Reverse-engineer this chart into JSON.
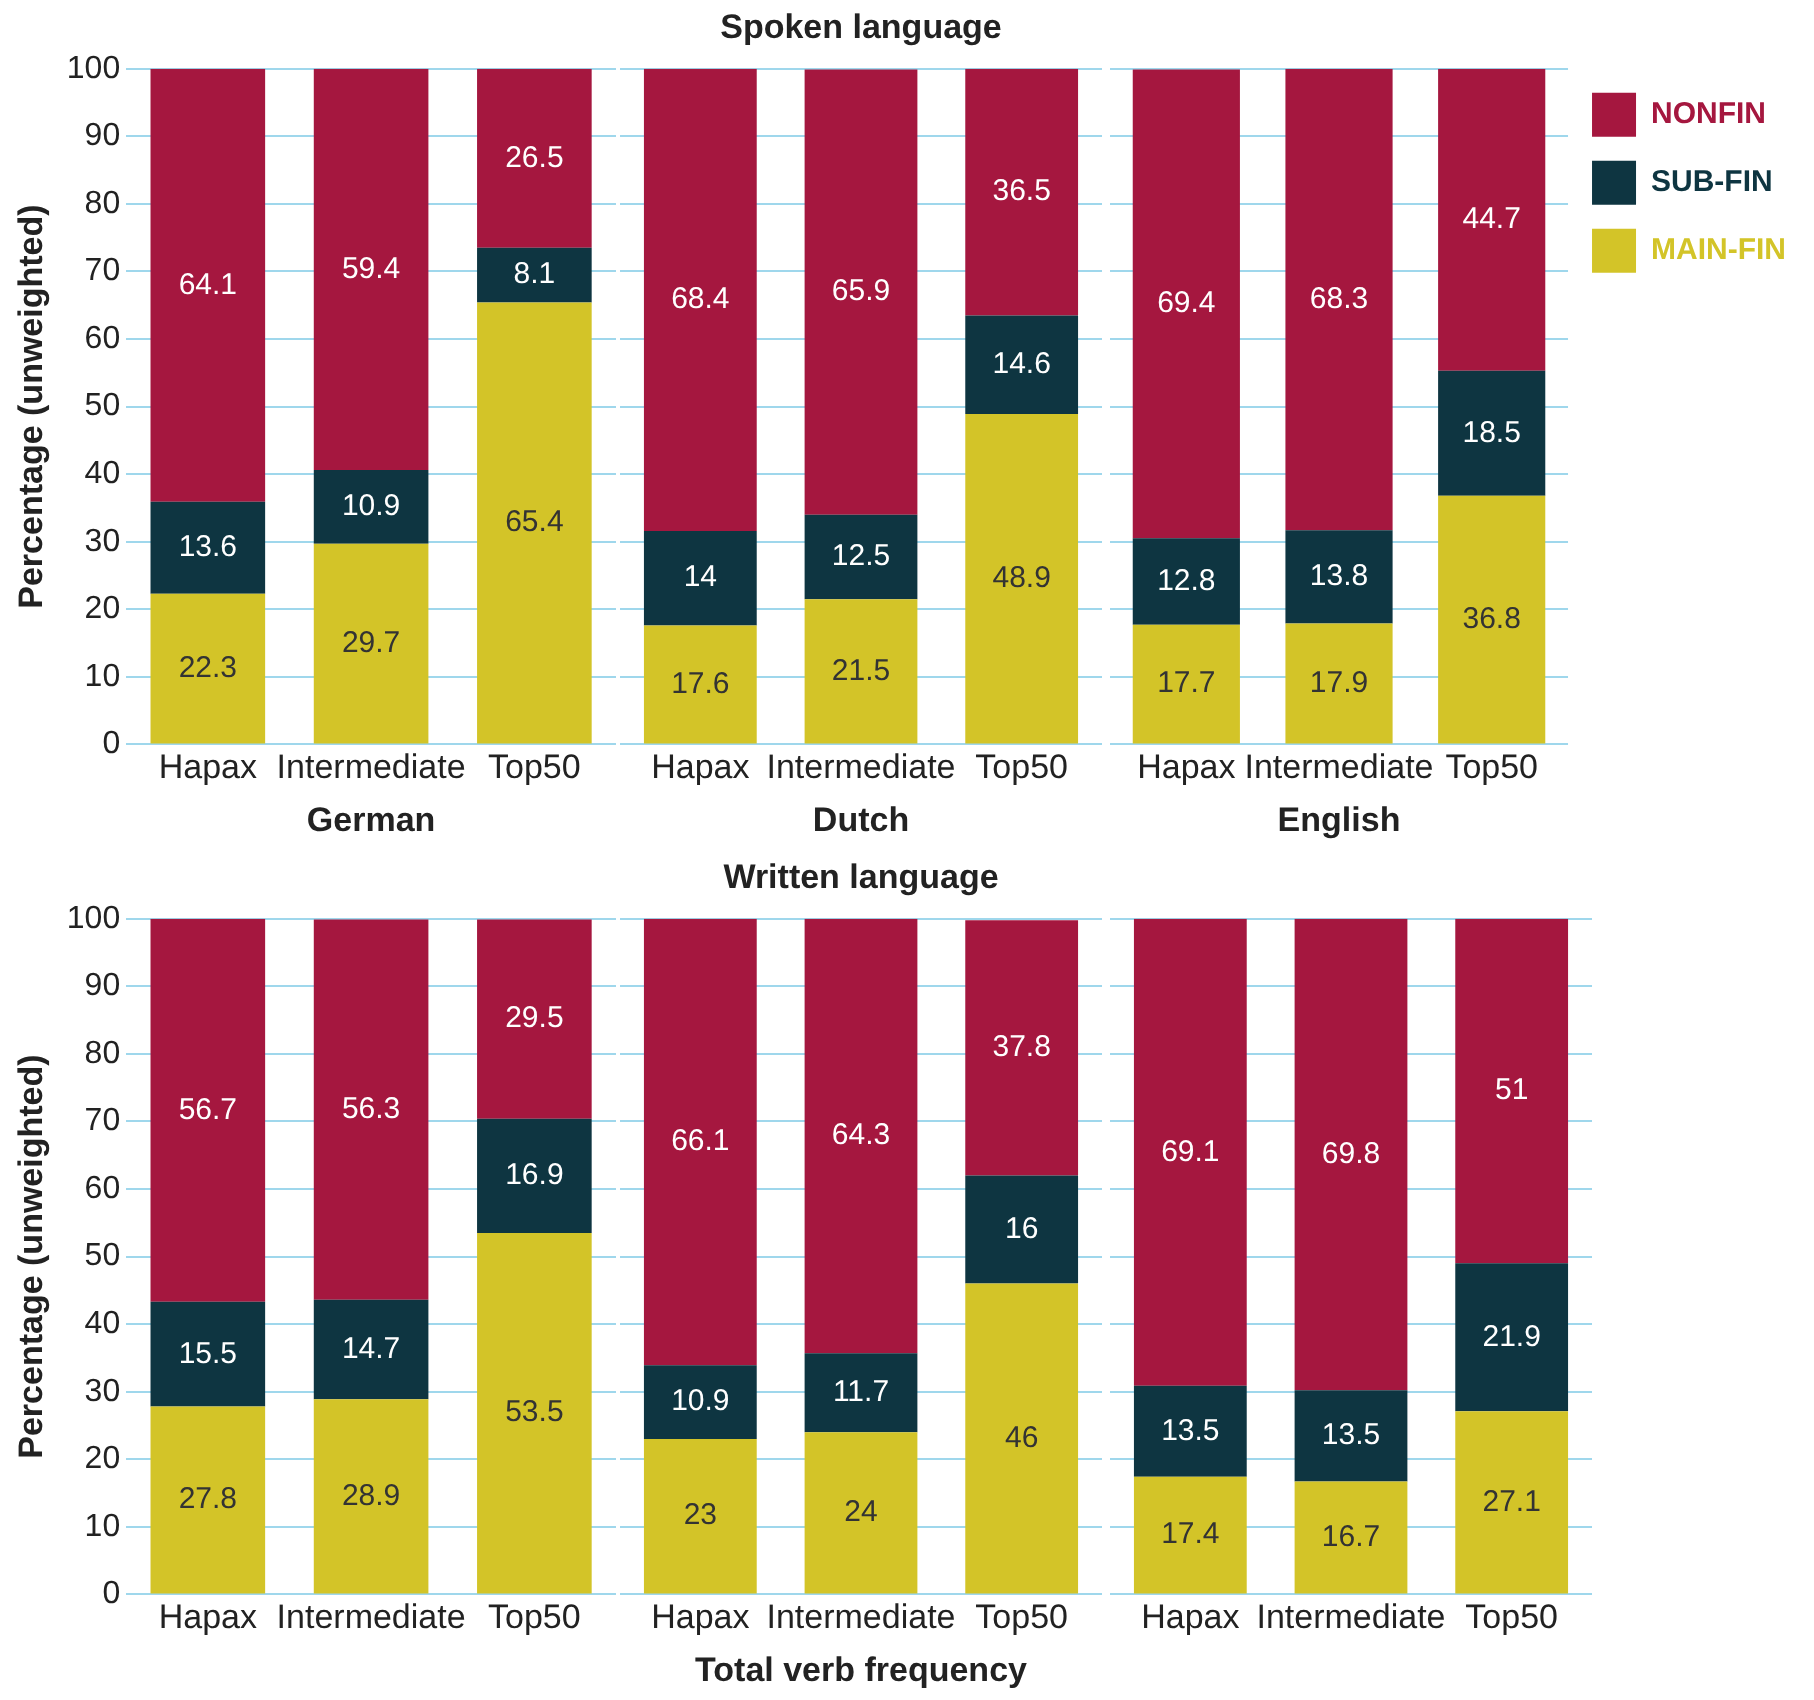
{
  "chart_data": [
    {
      "type": "bar",
      "stacked": true,
      "ylabel": "Percentage (unweighted)",
      "xlabel": "German",
      "categories": [
        "Hapax",
        "Intermediate",
        "Top50"
      ],
      "ylim": [
        0,
        100
      ],
      "yticks": [
        0,
        10,
        20,
        30,
        40,
        50,
        60,
        70,
        80,
        90,
        100
      ],
      "grid": "y",
      "data_labels": true,
      "series": [
        {
          "color": "#d3c428",
          "values": [
            22.3,
            29.7,
            65.4
          ]
        },
        {
          "color": "#0e3541",
          "values": [
            13.6,
            10.9,
            8.1
          ]
        },
        {
          "color": "#a5173f",
          "values": [
            64.1,
            59.4,
            26.5
          ]
        }
      ]
    },
    {
      "type": "bar",
      "stacked": true,
      "title": "Spoken language",
      "xlabel": "Dutch",
      "categories": [
        "Hapax",
        "Intermediate",
        "Top50"
      ],
      "ylim": [
        0,
        100
      ],
      "yticks": [
        0,
        10,
        20,
        30,
        40,
        50,
        60,
        70,
        80,
        90,
        100
      ],
      "grid": "y",
      "data_labels": true,
      "tick_labels": "x",
      "series": [
        {
          "color": "#d3c428",
          "values": [
            17.6,
            21.5,
            48.9
          ]
        },
        {
          "color": "#0e3541",
          "values": [
            14,
            12.5,
            14.6
          ]
        },
        {
          "color": "#a5173f",
          "values": [
            68.4,
            65.9,
            36.5
          ]
        }
      ]
    },
    {
      "type": "bar",
      "stacked": true,
      "xlabel": "English",
      "categories": [
        "Hapax",
        "Intermediate",
        "Top50"
      ],
      "ylim": [
        0,
        100
      ],
      "yticks": [
        0,
        10,
        20,
        30,
        40,
        50,
        60,
        70,
        80,
        90,
        100
      ],
      "grid": "y",
      "data_labels": true,
      "tick_labels": "x",
      "legend": "top right",
      "series": [
        {
          "name": "MAIN-FIN",
          "color": "#d3c428",
          "values": [
            17.7,
            17.9,
            36.8
          ]
        },
        {
          "name": "SUB-FIN",
          "color": "#0e3541",
          "values": [
            12.8,
            13.8,
            18.5
          ]
        },
        {
          "name": "NONFIN",
          "color": "#a5173f",
          "values": [
            69.4,
            68.3,
            44.7
          ]
        }
      ]
    },
    {
      "type": "bar",
      "stacked": true,
      "ylabel": "Percentage (unweighted)",
      "categories": [
        "Hapax",
        "Intermediate",
        "Top50"
      ],
      "ylim": [
        0,
        100
      ],
      "yticks": [
        0,
        10,
        20,
        30,
        40,
        50,
        60,
        70,
        80,
        90,
        100
      ],
      "grid": "y",
      "data_labels": true,
      "series": [
        {
          "color": "#d3c428",
          "values": [
            27.8,
            28.9,
            53.5
          ]
        },
        {
          "color": "#0e3541",
          "values": [
            15.5,
            14.7,
            16.9
          ]
        },
        {
          "color": "#a5173f",
          "values": [
            56.7,
            56.3,
            29.5
          ]
        }
      ]
    },
    {
      "type": "bar",
      "stacked": true,
      "title": "Written language",
      "xlabel": "Total verb frequency",
      "categories": [
        "Hapax",
        "Intermediate",
        "Top50"
      ],
      "ylim": [
        0,
        100
      ],
      "yticks": [
        0,
        10,
        20,
        30,
        40,
        50,
        60,
        70,
        80,
        90,
        100
      ],
      "grid": "y",
      "data_labels": true,
      "tick_labels": "x",
      "series": [
        {
          "color": "#d3c428",
          "values": [
            23,
            24,
            46
          ]
        },
        {
          "color": "#0e3541",
          "values": [
            10.9,
            11.7,
            16
          ]
        },
        {
          "color": "#a5173f",
          "values": [
            66.1,
            64.3,
            37.8
          ]
        }
      ]
    },
    {
      "type": "bar",
      "stacked": true,
      "categories": [
        "Hapax",
        "Intermediate",
        "Top50"
      ],
      "ylim": [
        0,
        100
      ],
      "yticks": [
        0,
        10,
        20,
        30,
        40,
        50,
        60,
        70,
        80,
        90,
        100
      ],
      "grid": "y",
      "data_labels": true,
      "tick_labels": "x",
      "series": [
        {
          "color": "#d3c428",
          "values": [
            17.4,
            16.7,
            27.1
          ]
        },
        {
          "color": "#0e3541",
          "values": [
            13.5,
            13.5,
            21.9
          ]
        },
        {
          "color": "#a5173f",
          "values": [
            69.1,
            69.8,
            51
          ]
        }
      ]
    }
  ]
}
